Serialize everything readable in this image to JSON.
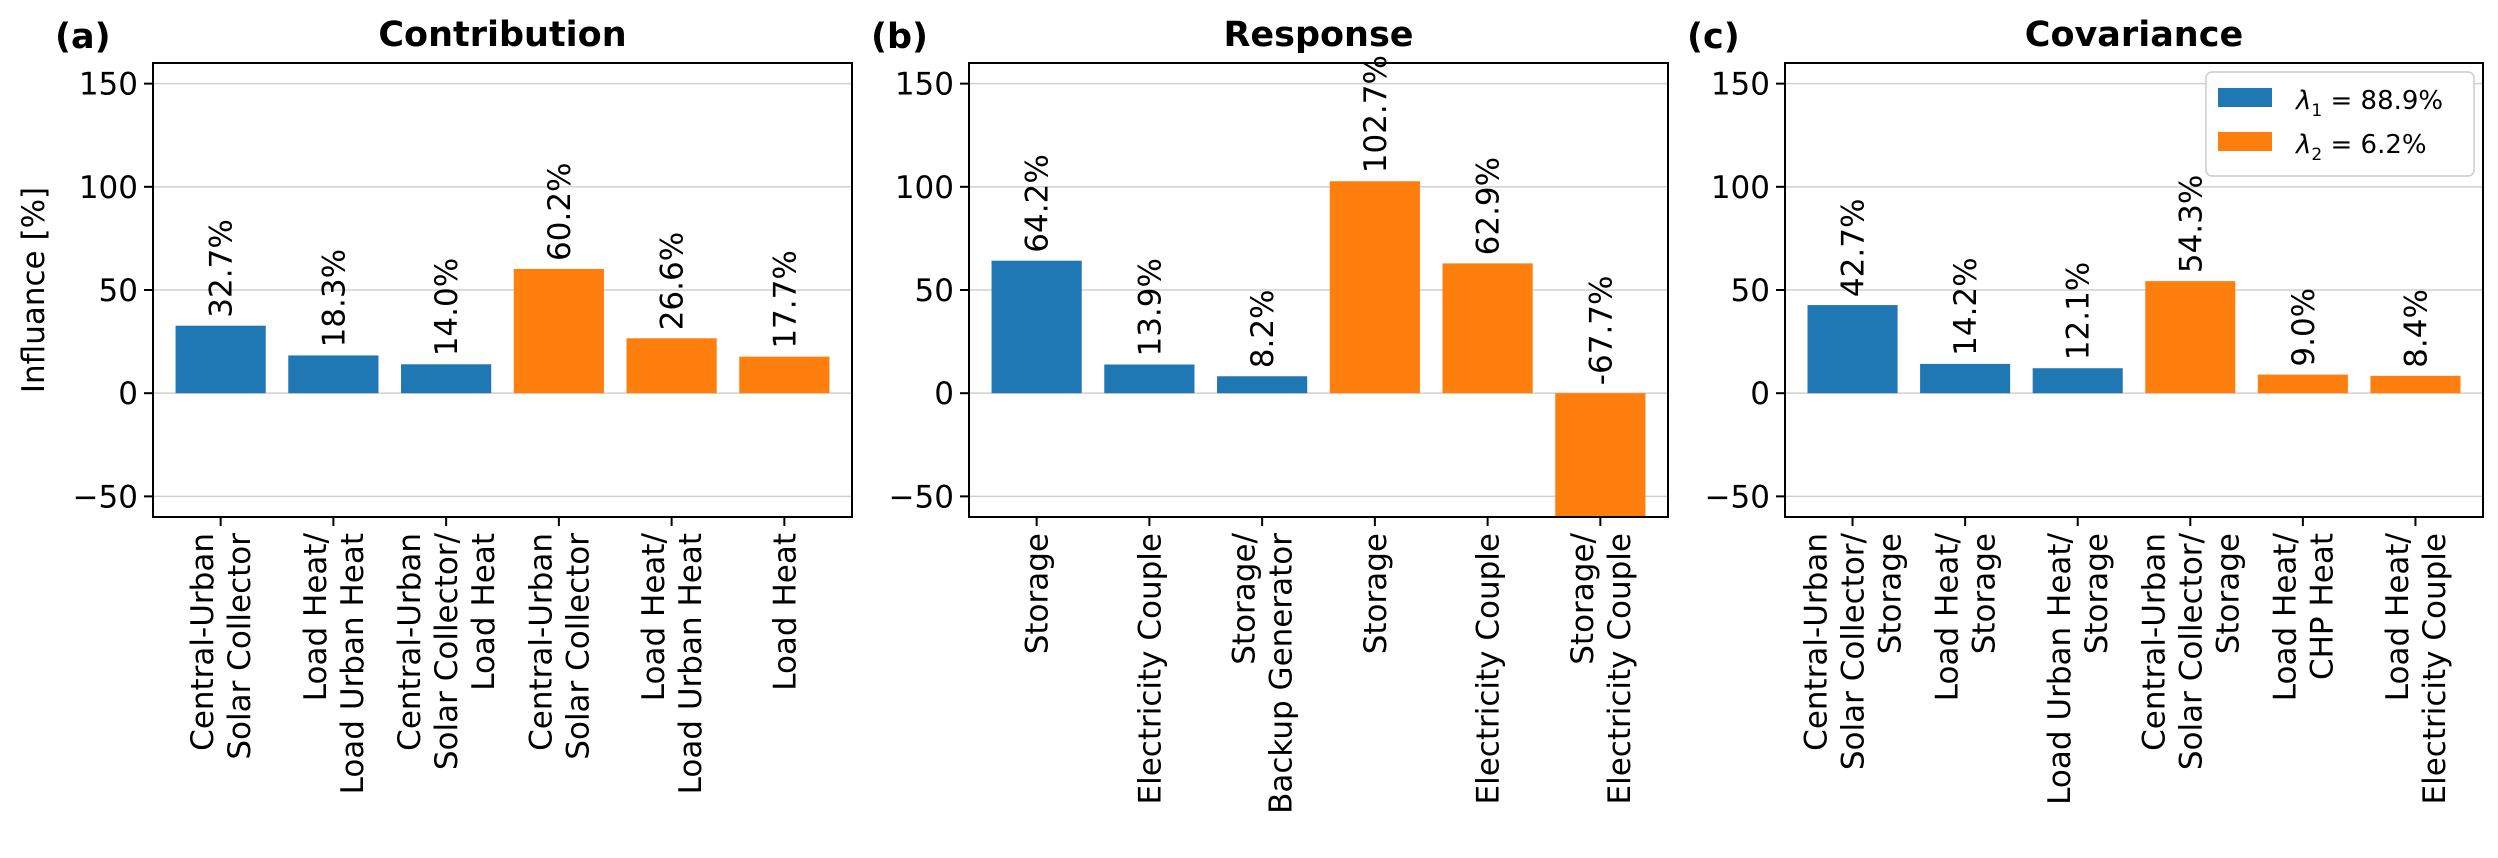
{
  "ylabel": "Influance [%]",
  "colors": {
    "blue": "#1f77b4",
    "orange": "#ff7f0e",
    "grid": "#d0d0d0"
  },
  "legend": [
    {
      "label_var": "λ",
      "label_sub": "1",
      "label_rest": " = 88.9%",
      "color": "#1f77b4"
    },
    {
      "label_var": "λ",
      "label_sub": "2",
      "label_rest": " = 6.2%",
      "color": "#ff7f0e"
    }
  ],
  "chart_data": [
    {
      "type": "bar",
      "panel": "(a)",
      "title": "Contribution",
      "ylim": [
        -60,
        160
      ],
      "yticks": [
        -50,
        0,
        50,
        100,
        150
      ],
      "grid": true,
      "categories": [
        [
          "Central-Urban",
          "Solar Collector"
        ],
        [
          "Load Heat/",
          "Load Urban Heat"
        ],
        [
          "Central-Urban",
          "Solar Collector/",
          "Load Heat"
        ],
        [
          "Central-Urban",
          "Solar Collector"
        ],
        [
          "Load Heat/",
          "Load Urban Heat"
        ],
        [
          "Load Heat"
        ]
      ],
      "values": [
        32.7,
        18.3,
        14.0,
        60.2,
        26.6,
        17.7
      ],
      "labels": [
        "32.7%",
        "18.3%",
        "14.0%",
        "60.2%",
        "26.6%",
        "17.7%"
      ],
      "colors": [
        "blue",
        "blue",
        "blue",
        "orange",
        "orange",
        "orange"
      ]
    },
    {
      "type": "bar",
      "panel": "(b)",
      "title": "Response",
      "ylim": [
        -60,
        160
      ],
      "yticks": [
        -50,
        0,
        50,
        100,
        150
      ],
      "grid": true,
      "categories": [
        [
          "Storage"
        ],
        [
          "Electricity Couple"
        ],
        [
          "Storage/",
          "Backup Generator"
        ],
        [
          "Storage"
        ],
        [
          "Electricity Couple"
        ],
        [
          "Storage/",
          "Electricity Couple"
        ]
      ],
      "values": [
        64.2,
        13.9,
        8.2,
        102.7,
        62.9,
        -67.7
      ],
      "labels": [
        "64.2%",
        "13.9%",
        "8.2%",
        "102.7%",
        "62.9%",
        "-67.7%"
      ],
      "colors": [
        "blue",
        "blue",
        "blue",
        "orange",
        "orange",
        "orange"
      ]
    },
    {
      "type": "bar",
      "panel": "(c)",
      "title": "Covariance",
      "ylim": [
        -60,
        160
      ],
      "yticks": [
        -50,
        0,
        50,
        100,
        150
      ],
      "grid": true,
      "legend_position": "upper right",
      "categories": [
        [
          "Central-Urban",
          "Solar Collector/",
          "Storage"
        ],
        [
          "Load Heat/",
          "Storage"
        ],
        [
          "Load Urban Heat/",
          "Storage"
        ],
        [
          "Central-Urban",
          "Solar Collector/",
          "Storage"
        ],
        [
          "Load Heat/",
          "CHP Heat"
        ],
        [
          "Load Heat/",
          "Electricity Couple"
        ]
      ],
      "values": [
        42.7,
        14.2,
        12.1,
        54.3,
        9.0,
        8.4
      ],
      "labels": [
        "42.7%",
        "14.2%",
        "12.1%",
        "54.3%",
        "9.0%",
        "8.4%"
      ],
      "colors": [
        "blue",
        "blue",
        "blue",
        "orange",
        "orange",
        "orange"
      ]
    }
  ]
}
